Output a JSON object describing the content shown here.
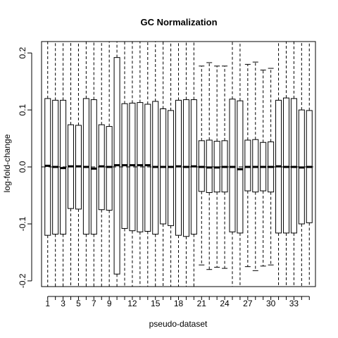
{
  "chart_data": {
    "type": "box",
    "title": "GC Normalization",
    "xlabel": "pseudo-dataset",
    "ylabel": "log-fold-change",
    "ylim": [
      -0.21,
      0.22
    ],
    "xlim": [
      0.2,
      35.8
    ],
    "y_ticks": [
      -0.2,
      -0.1,
      0.0,
      0.1,
      0.2
    ],
    "y_tick_labels": [
      "-0.2",
      "-0.1",
      "0.0",
      "0.1",
      "0.2"
    ],
    "x_tick_labels": [
      "1",
      "3",
      "5",
      "7",
      "9",
      "12",
      "15",
      "18",
      "21",
      "24",
      "27",
      "30",
      "33"
    ],
    "x_tick_positions": [
      1,
      3,
      5,
      7,
      9,
      12,
      15,
      18,
      21,
      24,
      27,
      30,
      33
    ],
    "reference_line_y": 0.0,
    "whisker_extends_beyond_plot": true,
    "boxes": [
      {
        "x": 1,
        "q1": -0.12,
        "median": 0.002,
        "q3": 0.12,
        "low": -0.21,
        "high": 0.22
      },
      {
        "x": 2,
        "q1": -0.118,
        "median": 0.0,
        "q3": 0.117,
        "low": -0.21,
        "high": 0.22
      },
      {
        "x": 3,
        "q1": -0.118,
        "median": -0.002,
        "q3": 0.117,
        "low": -0.21,
        "high": 0.22
      },
      {
        "x": 4,
        "q1": -0.073,
        "median": 0.001,
        "q3": 0.074,
        "low": -0.21,
        "high": 0.22
      },
      {
        "x": 5,
        "q1": -0.074,
        "median": 0.001,
        "q3": 0.073,
        "low": -0.21,
        "high": 0.22
      },
      {
        "x": 6,
        "q1": -0.118,
        "median": 0.0,
        "q3": 0.12,
        "low": -0.21,
        "high": 0.22
      },
      {
        "x": 7,
        "q1": -0.118,
        "median": -0.003,
        "q3": 0.118,
        "low": -0.21,
        "high": 0.22
      },
      {
        "x": 8,
        "q1": -0.075,
        "median": 0.001,
        "q3": 0.074,
        "low": -0.21,
        "high": 0.22
      },
      {
        "x": 9,
        "q1": -0.076,
        "median": 0.0,
        "q3": 0.071,
        "low": -0.21,
        "high": 0.22
      },
      {
        "x": 10,
        "q1": -0.188,
        "median": 0.003,
        "q3": 0.192,
        "low": -0.21,
        "high": 0.22
      },
      {
        "x": 11,
        "q1": -0.108,
        "median": 0.003,
        "q3": 0.111,
        "low": -0.21,
        "high": 0.22
      },
      {
        "x": 12,
        "q1": -0.112,
        "median": 0.003,
        "q3": 0.112,
        "low": -0.21,
        "high": 0.22
      },
      {
        "x": 13,
        "q1": -0.114,
        "median": 0.003,
        "q3": 0.113,
        "low": -0.21,
        "high": 0.22
      },
      {
        "x": 14,
        "q1": -0.113,
        "median": 0.003,
        "q3": 0.11,
        "low": -0.21,
        "high": 0.22
      },
      {
        "x": 15,
        "q1": -0.118,
        "median": 0.0,
        "q3": 0.115,
        "low": -0.21,
        "high": 0.22
      },
      {
        "x": 16,
        "q1": -0.1,
        "median": 0.0,
        "q3": 0.102,
        "low": -0.21,
        "high": 0.22
      },
      {
        "x": 17,
        "q1": -0.103,
        "median": 0.0,
        "q3": 0.099,
        "low": -0.21,
        "high": 0.22
      },
      {
        "x": 18,
        "q1": -0.12,
        "median": 0.001,
        "q3": 0.117,
        "low": -0.21,
        "high": 0.22
      },
      {
        "x": 19,
        "q1": -0.122,
        "median": 0.0,
        "q3": 0.118,
        "low": -0.21,
        "high": 0.22
      },
      {
        "x": 20,
        "q1": -0.118,
        "median": 0.001,
        "q3": 0.118,
        "low": -0.21,
        "high": 0.22
      },
      {
        "x": 21,
        "q1": -0.043,
        "median": 0.0,
        "q3": 0.046,
        "low": -0.172,
        "high": 0.177
      },
      {
        "x": 22,
        "q1": -0.045,
        "median": -0.001,
        "q3": 0.047,
        "low": -0.18,
        "high": 0.183
      },
      {
        "x": 23,
        "q1": -0.044,
        "median": -0.001,
        "q3": 0.045,
        "low": -0.176,
        "high": 0.177
      },
      {
        "x": 24,
        "q1": -0.044,
        "median": 0.0,
        "q3": 0.046,
        "low": -0.178,
        "high": 0.177
      },
      {
        "x": 25,
        "q1": -0.114,
        "median": 0.0,
        "q3": 0.119,
        "low": -0.21,
        "high": 0.22
      },
      {
        "x": 26,
        "q1": -0.116,
        "median": -0.004,
        "q3": 0.116,
        "low": -0.21,
        "high": 0.22
      },
      {
        "x": 27,
        "q1": -0.042,
        "median": 0.0,
        "q3": 0.047,
        "low": -0.175,
        "high": 0.18
      },
      {
        "x": 28,
        "q1": -0.044,
        "median": 0.0,
        "q3": 0.048,
        "low": -0.182,
        "high": 0.184
      },
      {
        "x": 29,
        "q1": -0.042,
        "median": 0.0,
        "q3": 0.043,
        "low": -0.174,
        "high": 0.17
      },
      {
        "x": 30,
        "q1": -0.044,
        "median": 0.0,
        "q3": 0.044,
        "low": -0.172,
        "high": 0.173
      },
      {
        "x": 31,
        "q1": -0.116,
        "median": 0.001,
        "q3": 0.117,
        "low": -0.21,
        "high": 0.22
      },
      {
        "x": 32,
        "q1": -0.116,
        "median": 0.0,
        "q3": 0.121,
        "low": -0.21,
        "high": 0.22
      },
      {
        "x": 33,
        "q1": -0.116,
        "median": 0.0,
        "q3": 0.12,
        "low": -0.21,
        "high": 0.22
      },
      {
        "x": 34,
        "q1": -0.1,
        "median": -0.001,
        "q3": 0.1,
        "low": -0.21,
        "high": 0.22
      },
      {
        "x": 35,
        "q1": -0.098,
        "median": 0.0,
        "q3": 0.099,
        "low": -0.21,
        "high": 0.22
      }
    ],
    "colors": {
      "box_fill": "#ffffff",
      "stroke": "#000000",
      "background": "#ffffff"
    },
    "grid": false,
    "legend": "none"
  }
}
